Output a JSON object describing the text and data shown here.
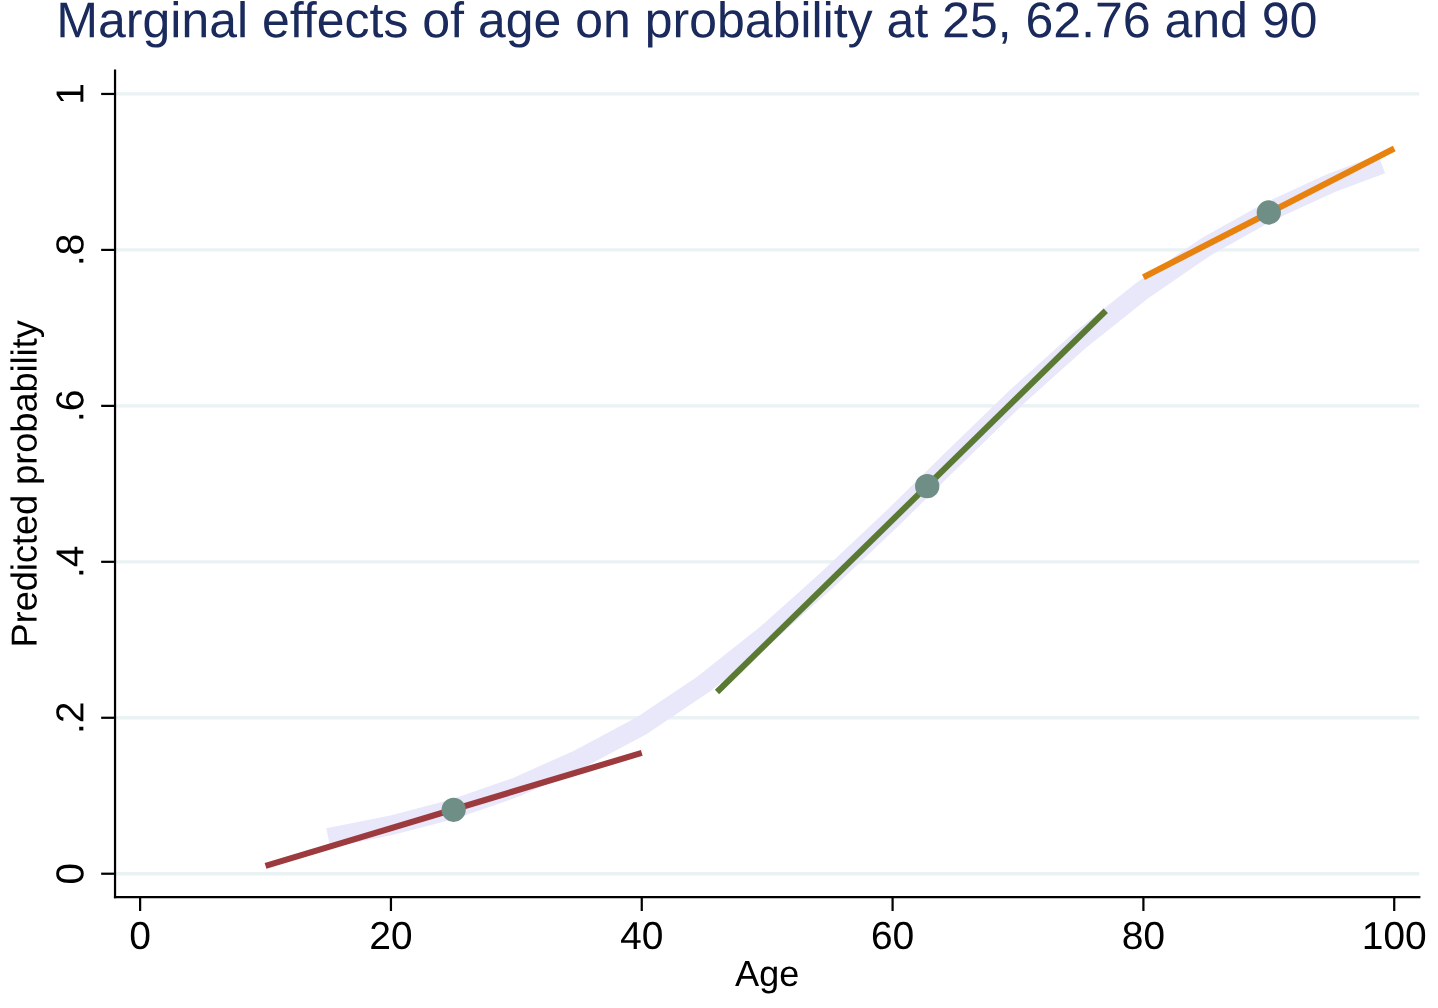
{
  "chart_data": {
    "type": "line",
    "title": "Marginal effects of age on probability at 25, 62.76 and 90",
    "xlabel": "Age",
    "ylabel": "Predicted probability",
    "xlim": [
      -2,
      102
    ],
    "ylim": [
      -0.03,
      1.03
    ],
    "xticks": [
      0,
      20,
      40,
      60,
      80,
      100
    ],
    "yticks": [
      {
        "value": 0,
        "label": "0"
      },
      {
        "value": 0.2,
        "label": ".2"
      },
      {
        "value": 0.4,
        "label": ".4"
      },
      {
        "value": 0.6,
        "label": ".6"
      },
      {
        "value": 0.8,
        "label": ".8"
      },
      {
        "value": 1,
        "label": "1"
      }
    ],
    "grid": "y",
    "series": [
      {
        "color": "#e8e8fa",
        "x": [
          15,
          20,
          25,
          30,
          35,
          40,
          45,
          50,
          55,
          60,
          65,
          70,
          75,
          80,
          85,
          90,
          95,
          99
        ],
        "values": [
          0.046,
          0.062,
          0.083,
          0.111,
          0.147,
          0.19,
          0.244,
          0.308,
          0.38,
          0.456,
          0.535,
          0.613,
          0.685,
          0.749,
          0.804,
          0.849,
          0.886,
          0.91
        ]
      },
      {
        "color": "#9c3a3e",
        "x": [
          10,
          40
        ],
        "values": [
          0.01,
          0.155
        ]
      },
      {
        "color": "#5a7a34",
        "x": [
          46,
          77
        ],
        "values": [
          0.233,
          0.722
        ]
      },
      {
        "color": "#e8820e",
        "x": [
          80,
          100
        ],
        "values": [
          0.765,
          0.93
        ]
      },
      {
        "type": "scatter",
        "color": "#6f8f86",
        "marker": "circle",
        "x": [
          25,
          62.76,
          90
        ],
        "values": [
          0.082,
          0.497,
          0.848
        ]
      }
    ]
  }
}
